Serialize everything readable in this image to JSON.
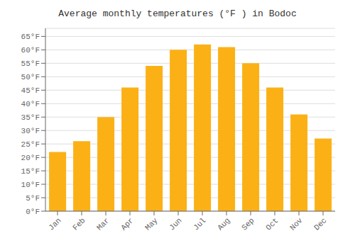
{
  "chart_data": {
    "type": "bar",
    "title": "Average monthly temperatures (°F ) in Bodoc",
    "categories": [
      "Jan",
      "Feb",
      "Mar",
      "Apr",
      "May",
      "Jun",
      "Jul",
      "Aug",
      "Sep",
      "Oct",
      "Nov",
      "Dec"
    ],
    "values": [
      22,
      26,
      35,
      46,
      54,
      60,
      62,
      61,
      55,
      46,
      36,
      27
    ],
    "color": "#FBB116",
    "ylim": [
      0,
      68
    ],
    "yticks": [
      {
        "value": 0,
        "label": "0°F"
      },
      {
        "value": 5,
        "label": "5°F"
      },
      {
        "value": 10,
        "label": "10°F"
      },
      {
        "value": 15,
        "label": "15°F"
      },
      {
        "value": 20,
        "label": "20°F"
      },
      {
        "value": 25,
        "label": "25°F"
      },
      {
        "value": 30,
        "label": "30°F"
      },
      {
        "value": 35,
        "label": "35°F"
      },
      {
        "value": 40,
        "label": "40°F"
      },
      {
        "value": 45,
        "label": "45°F"
      },
      {
        "value": 50,
        "label": "50°F"
      },
      {
        "value": 55,
        "label": "55°F"
      },
      {
        "value": 60,
        "label": "60°F"
      },
      {
        "value": 65,
        "label": "65°F"
      }
    ],
    "grid": true
  }
}
